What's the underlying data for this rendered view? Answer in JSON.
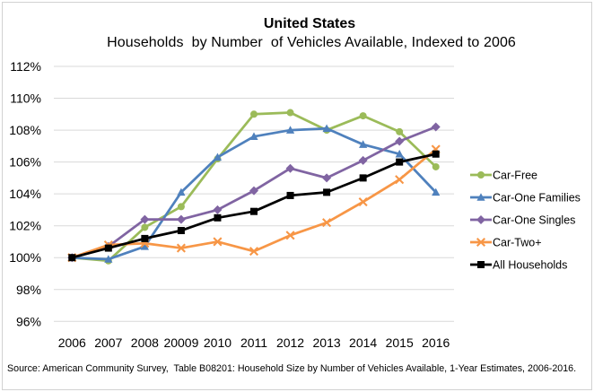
{
  "title": "United States",
  "subtitle": "Households  by Number  of Vehicles Available, Indexed to 2006",
  "source": "Source: American Community Survey,  Table B08201: Household Size by Number of Vehicles Available, 1-Year Estimates, 2006-2016.",
  "chart_data": {
    "type": "line",
    "categories": [
      "2006",
      "2007",
      "2008",
      "20009",
      "2010",
      "2011",
      "2012",
      "2013",
      "2014",
      "2015",
      "2016"
    ],
    "ylim": [
      96,
      112
    ],
    "ytick_step": 2,
    "ytick_suffix": "%",
    "grid": true,
    "legend_position": "right",
    "gridline_color": "#d9d9d9",
    "series": [
      {
        "name": "Car-Free",
        "color": "#9BBB59",
        "marker": "circle",
        "values": [
          100,
          99.8,
          101.9,
          103.2,
          106.2,
          109.0,
          109.1,
          108.0,
          108.9,
          107.9,
          105.7
        ]
      },
      {
        "name": "Car-One Families",
        "color": "#4F81BD",
        "marker": "triangle",
        "values": [
          100,
          99.9,
          100.7,
          104.1,
          106.3,
          107.6,
          108.0,
          108.1,
          107.1,
          106.5,
          104.1
        ]
      },
      {
        "name": "Car-One Singles",
        "color": "#8064A2",
        "marker": "diamond",
        "values": [
          100,
          100.7,
          102.4,
          102.4,
          103.0,
          104.2,
          105.6,
          105.0,
          106.1,
          107.3,
          108.2
        ]
      },
      {
        "name": "Car-Two+",
        "color": "#F79646",
        "marker": "x",
        "values": [
          100,
          100.8,
          100.9,
          100.6,
          101.0,
          100.4,
          101.4,
          102.2,
          103.5,
          104.9,
          106.8
        ]
      },
      {
        "name": "All Households",
        "color": "#000000",
        "marker": "square",
        "values": [
          100,
          100.6,
          101.2,
          101.7,
          102.5,
          102.9,
          103.9,
          104.1,
          105.0,
          106.0,
          106.5
        ]
      }
    ]
  }
}
